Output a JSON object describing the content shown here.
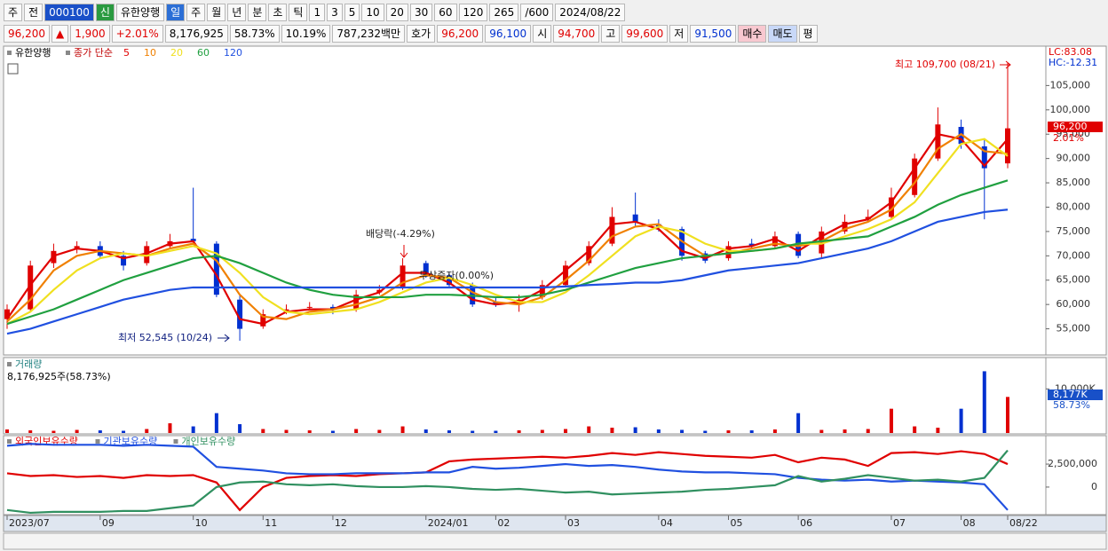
{
  "toolbar": {
    "row1": [
      "주",
      "전",
      "000100",
      "신",
      "유한양행",
      "일",
      "주",
      "월",
      "년",
      "분",
      "초",
      "틱",
      "1",
      "3",
      "5",
      "10",
      "20",
      "30",
      "60",
      "120",
      "265",
      "/600",
      "2024/08/22"
    ],
    "row2": [
      "96,200",
      "▲",
      "1,900",
      "+2.01%",
      "8,176,925",
      "58.73%",
      "10.19%",
      "787,232백만",
      "호가",
      "96,200",
      "96,100",
      "시",
      "94,700",
      "고",
      "99,600",
      "저",
      "91,500",
      "매수",
      "매도",
      "평"
    ]
  },
  "chart_data": [
    {
      "type": "candlestick",
      "title": "유한양행",
      "legend_prefix": "종가 단순",
      "categories": [
        "2023/07",
        null,
        null,
        null,
        "09",
        null,
        null,
        null,
        "10",
        null,
        null,
        "11",
        null,
        null,
        "12",
        null,
        null,
        null,
        "2024/01",
        null,
        null,
        "02",
        null,
        null,
        "03",
        null,
        null,
        null,
        "04",
        null,
        null,
        "05",
        null,
        null,
        "06",
        null,
        null,
        null,
        "07",
        null,
        null,
        "08",
        null,
        "08/22"
      ],
      "open": [
        57000,
        59000,
        68500,
        71500,
        72000,
        70000,
        68500,
        72000,
        73500,
        72500,
        61000,
        55500,
        58500,
        59500,
        59500,
        59000,
        62500,
        63500,
        68500,
        66000,
        64000,
        60500,
        60000,
        61500,
        64000,
        68500,
        72500,
        78500,
        76500,
        75500,
        70500,
        69500,
        72500,
        72000,
        74500,
        70500,
        75000,
        77500,
        78000,
        82500,
        90000,
        96500,
        92500,
        89000
      ],
      "high": [
        60000,
        69000,
        72500,
        73000,
        73000,
        71000,
        73000,
        74500,
        84000,
        73000,
        62000,
        59000,
        60000,
        60500,
        60000,
        63000,
        64000,
        69500,
        69000,
        66500,
        64500,
        61500,
        62000,
        65000,
        69000,
        73000,
        80000,
        83000,
        77500,
        76000,
        71000,
        73000,
        73500,
        75000,
        75000,
        76000,
        78500,
        79500,
        84000,
        91000,
        100500,
        98000,
        94000,
        109700
      ],
      "low": [
        55000,
        58500,
        67500,
        70500,
        69500,
        67000,
        68000,
        71500,
        72500,
        61500,
        52545,
        55000,
        58000,
        59000,
        58000,
        58500,
        62000,
        63000,
        65500,
        63500,
        59500,
        59500,
        58500,
        61000,
        63500,
        68000,
        72000,
        76000,
        75000,
        69000,
        68500,
        69000,
        71500,
        71500,
        69500,
        69500,
        74500,
        77000,
        77500,
        82000,
        89500,
        92000,
        77500,
        88000
      ],
      "close": [
        59000,
        68000,
        71000,
        72000,
        70000,
        68000,
        72000,
        73000,
        73000,
        62000,
        55000,
        58000,
        59000,
        59500,
        59000,
        62000,
        63000,
        68000,
        66000,
        64000,
        60000,
        60000,
        61000,
        64000,
        68000,
        72000,
        78000,
        77000,
        76000,
        70000,
        69000,
        72000,
        72000,
        74000,
        70000,
        75000,
        77000,
        78000,
        82000,
        90000,
        97000,
        93000,
        88000,
        96200
      ],
      "up_color": "#e00000",
      "down_color": "#0030d0",
      "series": [
        {
          "name": "5",
          "color": "#e00000",
          "values": [
            57000,
            64000,
            70000,
            71500,
            71000,
            69500,
            70500,
            72500,
            73000,
            66000,
            57000,
            56000,
            58500,
            59000,
            59000,
            61000,
            62500,
            66500,
            66500,
            64500,
            61000,
            60000,
            60500,
            63000,
            67000,
            71000,
            76500,
            77000,
            75500,
            71000,
            69500,
            71500,
            72000,
            73500,
            71000,
            74000,
            76500,
            77500,
            81000,
            88000,
            95000,
            94000,
            88500,
            94000
          ]
        },
        {
          "name": "10",
          "color": "#f08000",
          "values": [
            56500,
            61000,
            67000,
            70000,
            71000,
            70500,
            70000,
            71500,
            72500,
            69000,
            62000,
            57500,
            57000,
            58500,
            59000,
            60000,
            61500,
            64500,
            66000,
            65500,
            62500,
            60500,
            60000,
            61500,
            65000,
            69000,
            74000,
            76000,
            76500,
            73000,
            70000,
            70500,
            71500,
            72500,
            72000,
            73000,
            75500,
            77000,
            79500,
            85000,
            92000,
            95000,
            91500,
            91000
          ]
        },
        {
          "name": "20",
          "color": "#f0e020",
          "values": [
            56000,
            58500,
            63000,
            67000,
            69500,
            70500,
            70000,
            71000,
            72000,
            70500,
            66500,
            61500,
            58500,
            58000,
            58500,
            59000,
            60500,
            62500,
            64500,
            65500,
            64000,
            62000,
            60500,
            60500,
            62500,
            66000,
            70000,
            74000,
            76000,
            75000,
            72500,
            71000,
            71000,
            71500,
            72500,
            72500,
            74000,
            75500,
            77500,
            81000,
            87000,
            93000,
            94000,
            90500
          ]
        },
        {
          "name": "60",
          "color": "#20a040",
          "values": [
            56000,
            57500,
            59000,
            61000,
            63000,
            65000,
            66500,
            68000,
            69500,
            70000,
            68500,
            66500,
            64500,
            63000,
            62000,
            61500,
            61500,
            61500,
            62000,
            62000,
            61800,
            61500,
            61500,
            62000,
            63000,
            64500,
            66000,
            67500,
            68500,
            69500,
            70000,
            70500,
            71000,
            71500,
            72500,
            73000,
            73500,
            74000,
            76000,
            78000,
            80500,
            82500,
            84000,
            85500
          ]
        },
        {
          "name": "120",
          "color": "#2050e0",
          "values": [
            54000,
            55000,
            56500,
            58000,
            59500,
            61000,
            62000,
            63000,
            63500,
            63500,
            63500,
            63500,
            63500,
            63500,
            63500,
            63500,
            63500,
            63500,
            63500,
            63500,
            63500,
            63500,
            63500,
            63500,
            63700,
            64000,
            64200,
            64500,
            64500,
            65000,
            66000,
            67000,
            67500,
            68000,
            68500,
            69500,
            70500,
            71500,
            73000,
            75000,
            77000,
            78000,
            79000,
            79500
          ]
        }
      ],
      "ylim": [
        50000,
        112000
      ],
      "yticks": [
        {
          "value": 55000,
          "label": "55,000"
        },
        {
          "value": 60000,
          "label": "60,000"
        },
        {
          "value": 65000,
          "label": "65,000"
        },
        {
          "value": 70000,
          "label": "70,000"
        },
        {
          "value": 75000,
          "label": "75,000"
        },
        {
          "value": 80000,
          "label": "80,000"
        },
        {
          "value": 85000,
          "label": "85,000"
        },
        {
          "value": 90000,
          "label": "90,000"
        },
        {
          "value": 95000,
          "label": "95,000"
        },
        {
          "value": 100000,
          "label": "100,000"
        },
        {
          "value": 105000,
          "label": "105,000"
        }
      ],
      "annotations": [
        "최고 109,700 (08/21)",
        "최저 52,545 (10/24)",
        "배당락(-4.29%)",
        "무상증자(0.00%)"
      ],
      "indicators": [
        "LC:83.08",
        "HC:-12.31"
      ],
      "last_price_label": "96,200",
      "change_label": "2.01%"
    },
    {
      "type": "bar",
      "title": "거래량",
      "subtitle": "8,176,925주(58.73%)",
      "values": [
        800,
        600,
        500,
        700,
        600,
        500,
        900,
        2200,
        1500,
        4500,
        2000,
        900,
        700,
        600,
        500,
        900,
        700,
        1500,
        800,
        600,
        500,
        500,
        600,
        700,
        900,
        1500,
        1200,
        1300,
        800,
        700,
        500,
        600,
        600,
        800,
        4500,
        700,
        800,
        900,
        5500,
        1500,
        1200,
        5500,
        14000,
        8177
      ],
      "value_labels": [
        null,
        null,
        null,
        null,
        null,
        null,
        null,
        null,
        null,
        null,
        null,
        null,
        null,
        null,
        null,
        null,
        null,
        null,
        null,
        null,
        null,
        null,
        null,
        null,
        null,
        null,
        null,
        null,
        null,
        null,
        null,
        null,
        null,
        null,
        null,
        null,
        null,
        null,
        null,
        null,
        null,
        null,
        null,
        "8,177K"
      ],
      "ylim": [
        0,
        16500
      ],
      "yticks": [
        {
          "value": 10000,
          "label": "10,000K"
        }
      ],
      "ratio_label": "58.73%"
    },
    {
      "type": "line",
      "series": [
        {
          "name": "외국인보유수량",
          "color": "#e00000",
          "values": [
            1500000,
            1200000,
            1300000,
            1100000,
            1200000,
            1000000,
            1300000,
            1200000,
            1300000,
            500000,
            -2500000,
            0,
            1000000,
            1200000,
            1300000,
            1200000,
            1400000,
            1500000,
            1600000,
            2800000,
            3000000,
            3100000,
            3200000,
            3300000,
            3200000,
            3400000,
            3700000,
            3500000,
            3800000,
            3600000,
            3400000,
            3300000,
            3200000,
            3500000,
            2700000,
            3200000,
            3000000,
            2300000,
            3700000,
            3800000,
            3600000,
            3900000,
            3600000,
            2500000
          ]
        },
        {
          "name": "기관보유수량",
          "color": "#2050e0",
          "values": [
            4500000,
            4700000,
            4600000,
            4600000,
            4600000,
            4500000,
            4600000,
            4500000,
            4400000,
            2200000,
            2000000,
            1800000,
            1500000,
            1400000,
            1400000,
            1500000,
            1500000,
            1500000,
            1600000,
            1600000,
            2200000,
            2000000,
            2100000,
            2300000,
            2500000,
            2300000,
            2400000,
            2200000,
            1900000,
            1700000,
            1600000,
            1600000,
            1500000,
            1400000,
            1000000,
            800000,
            700000,
            800000,
            600000,
            700000,
            600000,
            500000,
            300000,
            -2500000
          ]
        },
        {
          "name": "개인보유수량",
          "color": "#309060",
          "values": [
            -2500000,
            -2800000,
            -2700000,
            -2700000,
            -2700000,
            -2600000,
            -2600000,
            -2300000,
            -2000000,
            0,
            500000,
            600000,
            300000,
            200000,
            300000,
            100000,
            0,
            0,
            100000,
            0,
            -200000,
            -300000,
            -200000,
            -400000,
            -600000,
            -500000,
            -800000,
            -700000,
            -600000,
            -500000,
            -300000,
            -200000,
            0,
            200000,
            1200000,
            600000,
            900000,
            1300000,
            1000000,
            700000,
            800000,
            600000,
            1000000,
            4000000
          ]
        }
      ],
      "ylim": [
        -3000000,
        5500000
      ],
      "yticks": [
        {
          "value": 2500000,
          "label": "2,500,000"
        },
        0
      ]
    }
  ]
}
